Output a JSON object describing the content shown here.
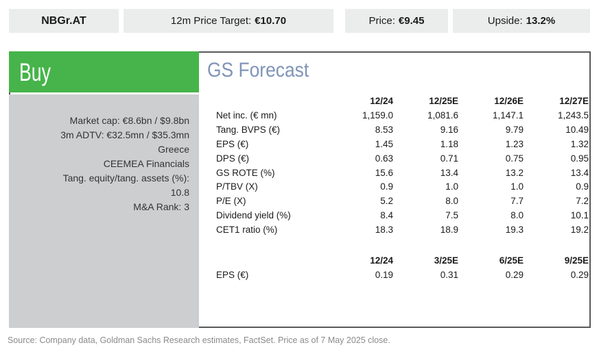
{
  "colors": {
    "buy_green": "#46B44A",
    "title_blue": "#8094B8",
    "sidebar_gray": "#CDCED0",
    "headerbar_gray": "#EBECEC",
    "border_gray": "#58595B"
  },
  "header_bar": {
    "ticker": "NBGr.AT",
    "price_target_label": "12m Price Target:",
    "price_target_value": "€10.70",
    "price_label": "Price:",
    "price_value": "€9.45",
    "upside_label": "Upside:",
    "upside_value": "13.2%"
  },
  "rating": {
    "label": "Buy"
  },
  "sidebar": {
    "lines": [
      "Market cap: €8.6bn / $9.8bn",
      "3m ADTV: €32.5mn / $35.3mn",
      "Greece",
      "CEEMEA Financials",
      "Tang. equity/tang. assets (%):",
      "10.8",
      "M&A Rank: 3"
    ]
  },
  "forecast": {
    "title": "GS Forecast",
    "annual": {
      "columns": [
        "12/24",
        "12/25E",
        "12/26E",
        "12/27E"
      ],
      "rows": [
        {
          "label": "Net inc. (€ mn)",
          "values": [
            "1,159.0",
            "1,081.6",
            "1,147.1",
            "1,243.5"
          ]
        },
        {
          "label": "Tang. BVPS (€)",
          "values": [
            "8.53",
            "9.16",
            "9.79",
            "10.49"
          ]
        },
        {
          "label": "EPS (€)",
          "values": [
            "1.45",
            "1.18",
            "1.23",
            "1.32"
          ]
        },
        {
          "label": "DPS (€)",
          "values": [
            "0.63",
            "0.71",
            "0.75",
            "0.95"
          ]
        },
        {
          "label": "GS ROTE (%)",
          "values": [
            "15.6",
            "13.4",
            "13.2",
            "13.4"
          ]
        },
        {
          "label": "P/TBV (X)",
          "values": [
            "0.9",
            "1.0",
            "1.0",
            "0.9"
          ]
        },
        {
          "label": "P/E (X)",
          "values": [
            "5.2",
            "8.0",
            "7.7",
            "7.2"
          ]
        },
        {
          "label": "Dividend yield (%)",
          "values": [
            "8.4",
            "7.5",
            "8.0",
            "10.1"
          ]
        },
        {
          "label": "CET1 ratio (%)",
          "values": [
            "18.3",
            "18.9",
            "19.3",
            "19.2"
          ]
        }
      ]
    },
    "quarterly": {
      "columns": [
        "12/24",
        "3/25E",
        "6/25E",
        "9/25E"
      ],
      "rows": [
        {
          "label": "EPS (€)",
          "values": [
            "0.19",
            "0.31",
            "0.29",
            "0.29"
          ]
        }
      ]
    }
  },
  "footer": {
    "source": "Source: Company data, Goldman Sachs Research estimates, FactSet. Price as of 7 May 2025 close."
  }
}
